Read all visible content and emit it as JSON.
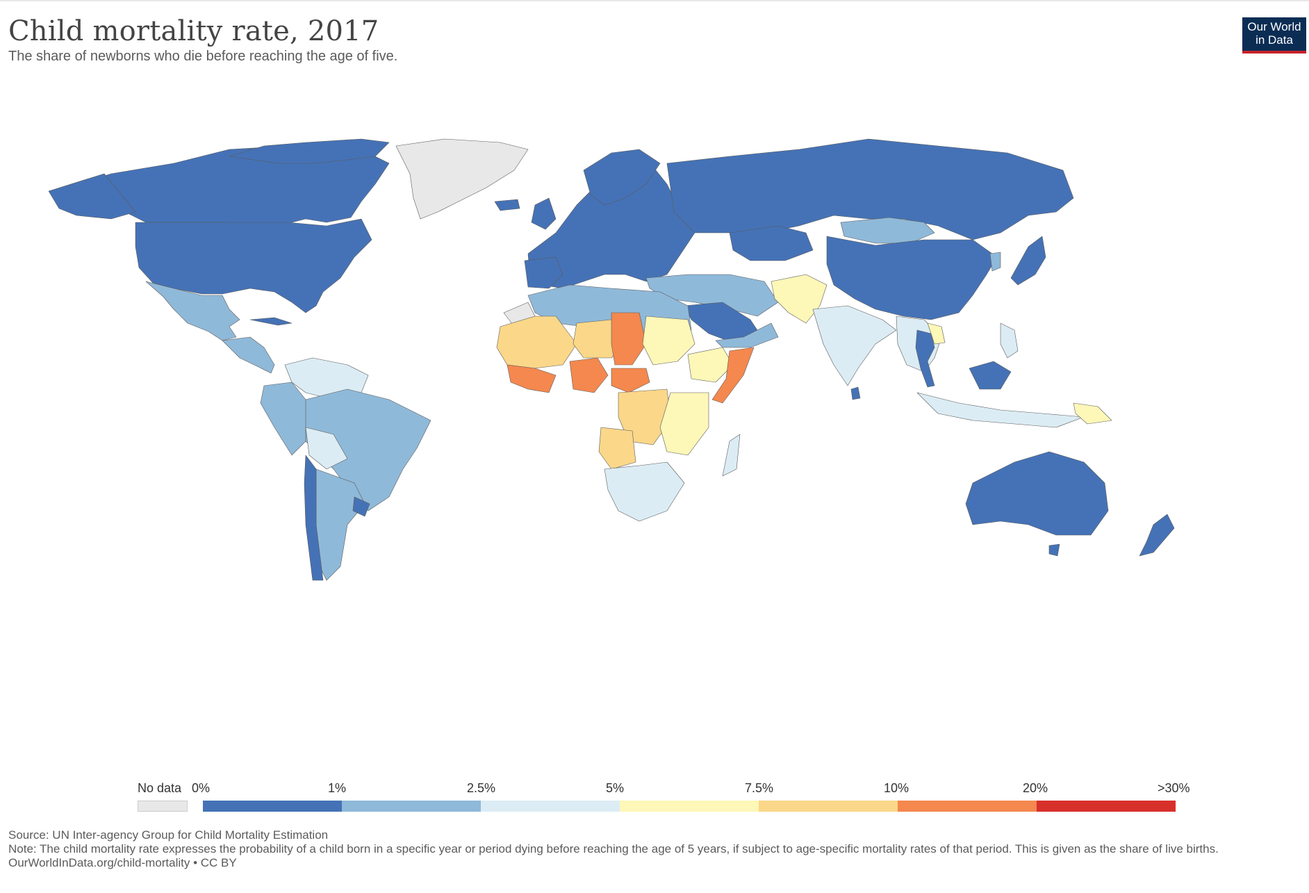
{
  "header": {
    "title": "Child mortality rate, 2017",
    "subtitle": "The share of newborns who die before reaching the age of five."
  },
  "logo": {
    "line1": "Our World",
    "line2": "in Data"
  },
  "legend": {
    "no_data_label": "No data",
    "breaks": [
      "0%",
      "1%",
      "2.5%",
      "5%",
      "7.5%",
      "10%",
      "20%",
      ">30%"
    ],
    "colors": [
      "#4572b6",
      "#8fb9d9",
      "#dcecf4",
      "#fdf7b8",
      "#fbd789",
      "#f4884e",
      "#d7302b"
    ],
    "no_data_color": "#e8e8e8"
  },
  "footer": {
    "source": "Source: UN Inter-agency Group for Child Mortality Estimation",
    "note": "Note: The child mortality rate expresses the probability of a child born in a specific year or period dying before reaching the age of 5 years, if subject to age-specific mortality rates of that period. This is given as the share of live births.",
    "url": "OurWorldInData.org/child-mortality • CC BY"
  }
}
